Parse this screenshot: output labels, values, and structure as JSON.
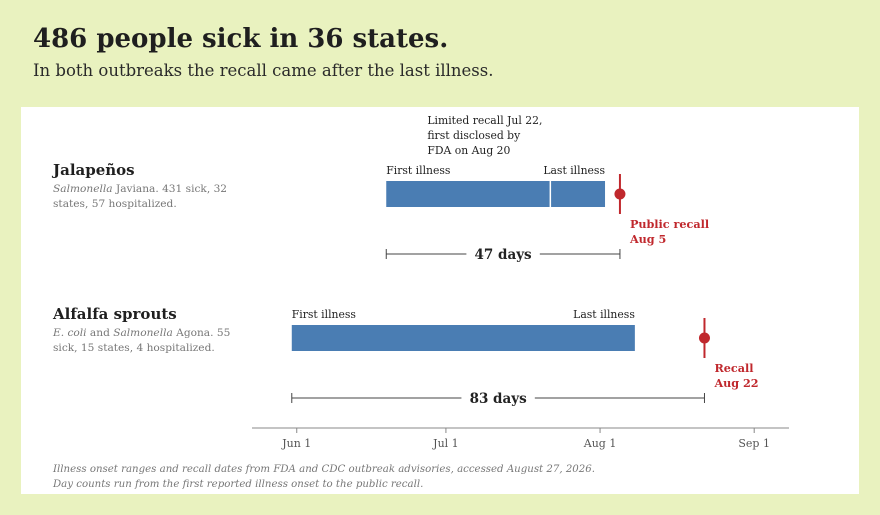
{
  "headline": "486 people sick in 36 states.",
  "subhead": "In both outbreaks the recall came after the last illness.",
  "colors": {
    "background": "#e9f2bf",
    "panel": "#ffffff",
    "bar": "#4a7db3",
    "recall": "#c0282d",
    "axis": "#888888"
  },
  "rows": [
    {
      "title": "Jalapeños",
      "desc_html": "<i>Salmonella</i> Javiana. 431 sick, 32 states, 57 hospitalized.",
      "first_label": "First illness",
      "last_label": "Last illness",
      "marker_label": [
        "Limited recall Jul 22,",
        "first disclosed by",
        "FDA on Aug 20"
      ],
      "recall_label": [
        "Public recall",
        "Aug 5"
      ],
      "span_label": "47 days"
    },
    {
      "title": "Alfalfa sprouts",
      "desc_html": "<i>E. coli</i> and <i>Salmonella</i> Agona. 55 sick, 15 states, 4 hospitalized.",
      "first_label": "First illness",
      "last_label": "Last illness",
      "recall_label": [
        "Recall",
        "Aug 22"
      ],
      "span_label": "83 days"
    }
  ],
  "note_lines": [
    "Illness onset ranges and recall dates from FDA and CDC outbreak advisories, accessed August 27, 2026.",
    "Day counts run from the first reported illness onset to the public recall."
  ],
  "chart_data": {
    "type": "bar",
    "subtype": "timeline-range",
    "axis": {
      "ticks": [
        "Jun 1",
        "Jul 1",
        "Aug 1",
        "Sep 1"
      ],
      "range": [
        "2026-05-23",
        "2026-09-08"
      ]
    },
    "series": [
      {
        "name": "Jalapeños",
        "first_illness": "2026-06-19",
        "last_illness": "2026-08-02",
        "marker": "2026-07-22",
        "recall": "2026-08-05",
        "days": 47
      },
      {
        "name": "Alfalfa sprouts",
        "first_illness": "2026-05-31",
        "last_illness": "2026-08-08",
        "recall": "2026-08-22",
        "days": 83
      }
    ]
  }
}
